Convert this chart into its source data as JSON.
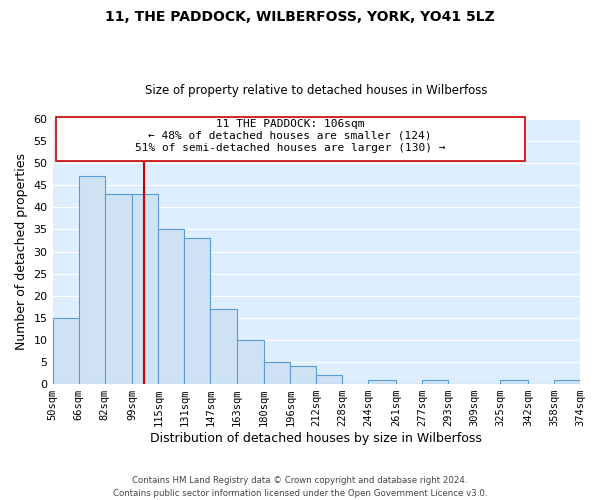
{
  "title": "11, THE PADDOCK, WILBERFOSS, YORK, YO41 5LZ",
  "subtitle": "Size of property relative to detached houses in Wilberfoss",
  "xlabel": "Distribution of detached houses by size in Wilberfoss",
  "ylabel": "Number of detached properties",
  "bar_edges": [
    50,
    66,
    82,
    99,
    115,
    131,
    147,
    163,
    180,
    196,
    212,
    228,
    244,
    261,
    277,
    293,
    309,
    325,
    342,
    358,
    374
  ],
  "bar_heights": [
    15,
    47,
    43,
    43,
    35,
    33,
    17,
    10,
    5,
    4,
    2,
    0,
    1,
    0,
    1,
    0,
    0,
    1,
    0,
    1
  ],
  "bar_color": "#cfe2f3",
  "bar_edgecolor": "#5b9bd5",
  "ylim": [
    0,
    60
  ],
  "yticks": [
    0,
    5,
    10,
    15,
    20,
    25,
    30,
    35,
    40,
    45,
    50,
    55,
    60
  ],
  "property_line_x": 106,
  "property_line_color": "#cc0000",
  "ann_line1": "11 THE PADDOCK: 106sqm",
  "ann_line2": "← 48% of detached houses are smaller (124)",
  "ann_line3": "51% of semi-detached houses are larger (130) →",
  "footer_text": "Contains HM Land Registry data © Crown copyright and database right 2024.\nContains public sector information licensed under the Open Government Licence v3.0.",
  "background_color": "#ffffff",
  "plot_bg_color": "#ddeeff",
  "grid_color": "#ffffff",
  "tick_labels": [
    "50sqm",
    "66sqm",
    "82sqm",
    "99sqm",
    "115sqm",
    "131sqm",
    "147sqm",
    "163sqm",
    "180sqm",
    "196sqm",
    "212sqm",
    "228sqm",
    "244sqm",
    "261sqm",
    "277sqm",
    "293sqm",
    "309sqm",
    "325sqm",
    "342sqm",
    "358sqm",
    "374sqm"
  ]
}
